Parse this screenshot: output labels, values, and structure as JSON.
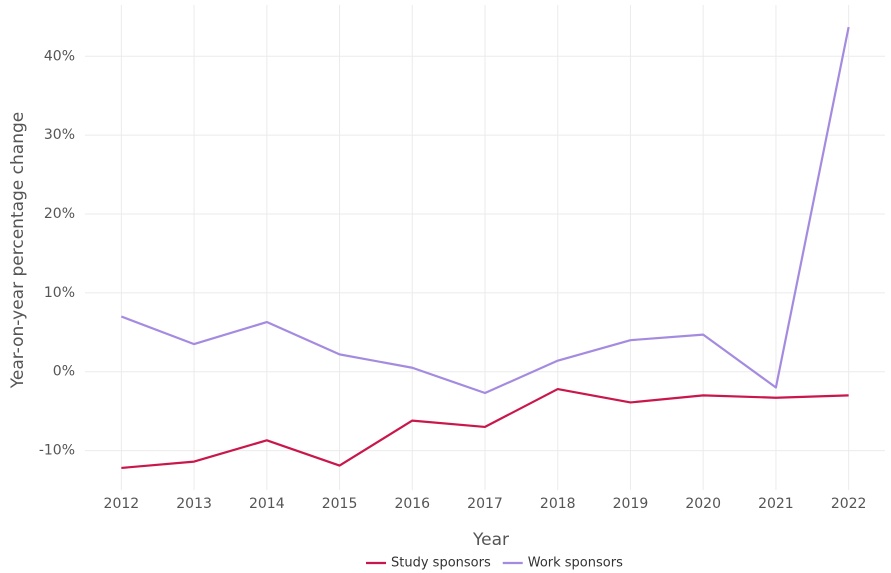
{
  "chart_data": {
    "type": "line",
    "x_label": "Year",
    "y_label": "Year-on-year percentage change",
    "x": [
      2012,
      2013,
      2014,
      2015,
      2016,
      2017,
      2018,
      2019,
      2020,
      2021,
      2022
    ],
    "xlim": [
      2011.5,
      2022.5
    ],
    "xticks": [
      2012,
      2013,
      2014,
      2015,
      2016,
      2017,
      2018,
      2019,
      2020,
      2021,
      2022
    ],
    "ylim": [
      -15,
      46.5
    ],
    "yticks": [
      {
        "value": -10,
        "label": "-10%"
      },
      {
        "value": 0,
        "label": "0%"
      },
      {
        "value": 10,
        "label": "10%"
      },
      {
        "value": 20,
        "label": "20%"
      },
      {
        "value": 30,
        "label": "30%"
      },
      {
        "value": 40,
        "label": "40%"
      }
    ],
    "grid": true,
    "legend": "bottom",
    "series": [
      {
        "name": "Study sponsors",
        "color": "#c9174b",
        "values": [
          -12.2,
          -11.4,
          -8.7,
          -11.9,
          -6.2,
          -7.0,
          -2.2,
          -3.9,
          -3.0,
          -3.3,
          -3.0
        ]
      },
      {
        "name": "Work sponsors",
        "color": "#a58be0",
        "values": [
          7.0,
          3.5,
          6.3,
          2.2,
          0.5,
          -2.7,
          1.4,
          4.0,
          4.7,
          -2.0,
          43.7
        ]
      }
    ]
  }
}
